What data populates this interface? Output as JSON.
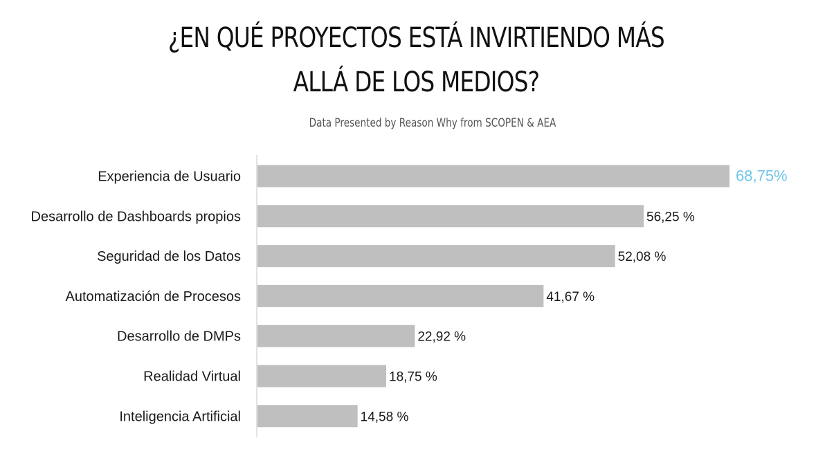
{
  "title_line1": "¿EN QUÉ PROYECTOS ESTÁ INVIRTIENDO MÁS",
  "title_line2": "ALLÁ DE LOS MEDIOS?",
  "subtitle": "Data Presented by Reason Why from SCOPEN & AEA",
  "colors": {
    "bar": "#bfbfbf",
    "axis": "#d9d9d9",
    "highlight": "#6ec6ea",
    "text": "#1a1a1a"
  },
  "chart_data": {
    "type": "bar",
    "orientation": "horizontal",
    "title": "¿EN QUÉ PROYECTOS ESTÁ INVIRTIENDO MÁS ALLÁ DE LOS MEDIOS?",
    "subtitle": "Data Presented by Reason Why from SCOPEN & AEA",
    "categories": [
      "Experiencia de Usuario",
      "Desarrollo de Dashboards propios",
      "Seguridad de los Datos",
      "Automatización de Procesos",
      "Desarrollo de DMPs",
      "Realidad Virtual",
      "Inteligencia Artificial"
    ],
    "values": [
      68.75,
      56.25,
      52.08,
      41.67,
      22.92,
      18.75,
      14.58
    ],
    "value_labels": [
      "68,75%",
      "56,25 %",
      "52,08 %",
      "41,67 %",
      "22,92 %",
      "18,75 %",
      "14,58 %"
    ],
    "highlight_index": 0,
    "xlim": [
      0,
      68.75
    ],
    "grid": false,
    "legend": "none"
  }
}
